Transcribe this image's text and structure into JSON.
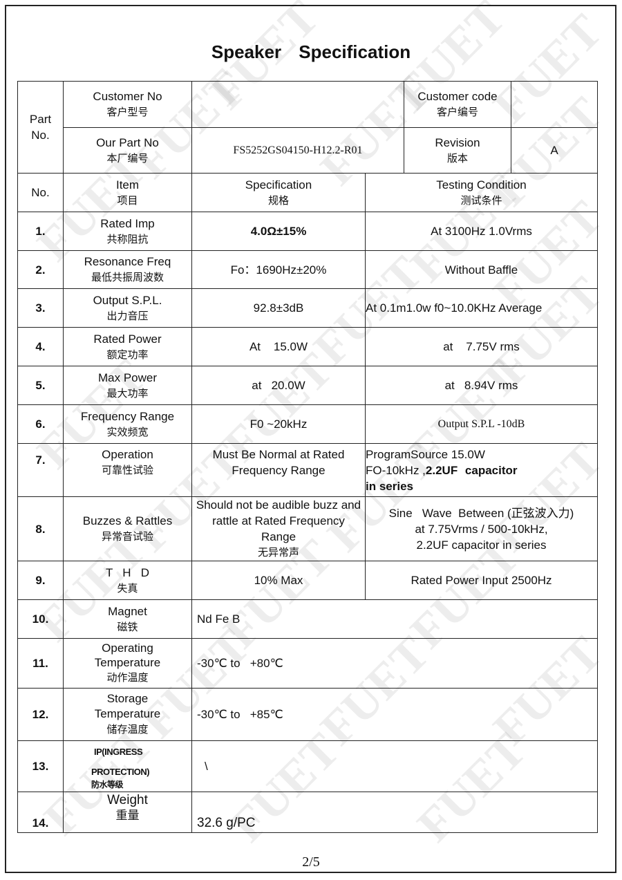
{
  "title": "Speaker   Specification",
  "watermark": "FUET",
  "header": {
    "part_no": "Part No.",
    "customer_no_label": "Customer No",
    "customer_no_label_cn": "客户型号",
    "customer_no": "",
    "customer_code_label": "Customer code",
    "customer_code_label_cn": "客户编号",
    "customer_code": "",
    "our_part_label": "Our Part No",
    "our_part_label_cn": "本厂编号",
    "our_part": "FS5252GS04150-H12.2-R01",
    "revision_label": "Revision",
    "revision_label_cn": "版本",
    "revision": "A"
  },
  "columns": {
    "no": "No.",
    "item": "Item",
    "item_cn": "项目",
    "spec": "Specification",
    "spec_cn": "规格",
    "test": "Testing Condition",
    "test_cn": "测试条件"
  },
  "rows": [
    {
      "no": "1.",
      "item": "Rated Imp",
      "item_cn": "共称阻抗",
      "spec": "4.0Ω±15%",
      "test": "At 3100Hz 1.0Vrms"
    },
    {
      "no": "2.",
      "item": "Resonance Freq",
      "item_cn": "最低共振周波数",
      "spec": "Fo：1690Hz±20%",
      "test": "Without Baffle"
    },
    {
      "no": "3.",
      "item": "Output S.P.L.",
      "item_cn": "出力音压",
      "spec": "92.8±3dB",
      "test": "At 0.1m1.0w f0~10.0KHz Average"
    },
    {
      "no": "4.",
      "item": "Rated Power",
      "item_cn": "额定功率",
      "spec": "At    15.0W",
      "test": "at    7.75V rms"
    },
    {
      "no": "5.",
      "item": "Max Power",
      "item_cn": "最大功率",
      "spec": "at   20.0W",
      "test": "at   8.94V rms"
    },
    {
      "no": "6.",
      "item": "Frequency Range",
      "item_cn": "实效频宽",
      "spec": "F0 ~20kHz",
      "test": "Output S.P.L -10dB"
    },
    {
      "no": "7.",
      "item": "Operation",
      "item_cn": "可靠性试验",
      "spec": "Must Be Normal at Rated Frequency Range",
      "test_l1": "ProgramSource  15.0W",
      "test_l2a": "FO-10kHz  ,",
      "test_l2b": "2.2UF  capacitor",
      "test_l3": "in series"
    },
    {
      "no": "8.",
      "item": "Buzzes & Rattles",
      "item_cn": "异常音试验",
      "spec": "Should not be audible buzz and rattle at Rated Frequency Range",
      "spec_cn": "无异常声",
      "test_l1": "Sine   Wave  Between (正弦波入力)",
      "test_l2": "at  7.75Vrms / 500-10kHz,",
      "test_l3": "2.2UF capacitor in series"
    },
    {
      "no": "9.",
      "item": "T   H   D",
      "item_cn": "失真",
      "spec": "10% Max",
      "test": "Rated Power Input 2500Hz"
    },
    {
      "no": "10.",
      "item": "Magnet",
      "item_cn": "磁铁",
      "value": "Nd Fe B"
    },
    {
      "no": "11.",
      "item": "Operating Temperature",
      "item_cn": "动作温度",
      "value": "-30℃ to   +80℃"
    },
    {
      "no": "12.",
      "item": "Storage Temperature",
      "item_cn": "储存温度",
      "value": "-30℃ to   +85℃"
    },
    {
      "no": "13.",
      "item_l1": "IP(INGRESS",
      "item_l2": "PROTECTION)",
      "item_cn": "防水等级",
      "value": "\\"
    },
    {
      "no": "14.",
      "item": "Weight",
      "item_cn": "重量",
      "value": "32.6 g/PC"
    }
  ],
  "page_number": "2/5"
}
